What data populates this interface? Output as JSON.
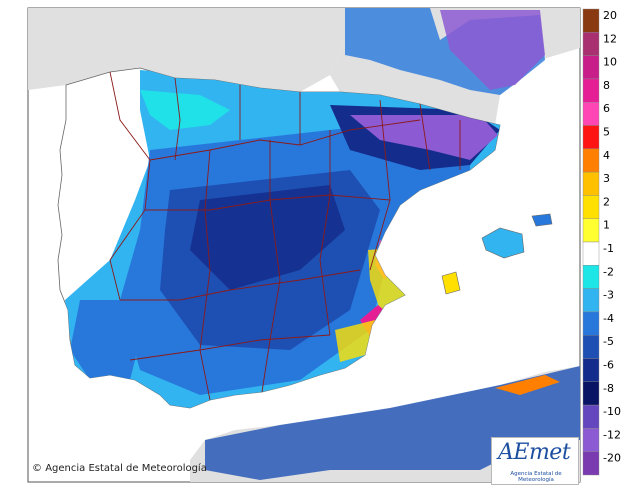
{
  "map": {
    "copyright": "Agencia Estatal de Meteorología",
    "logo_text": "AEmet",
    "logo_subtitle": "Agencia Estatal de Meteorología",
    "legend": [
      {
        "label": "20",
        "color": "#8a3a10"
      },
      {
        "label": "12",
        "color": "#a83070"
      },
      {
        "label": "10",
        "color": "#c81e8a"
      },
      {
        "label": "8",
        "color": "#e61e96"
      },
      {
        "label": "6",
        "color": "#ff46b4"
      },
      {
        "label": "5",
        "color": "#ff1414"
      },
      {
        "label": "4",
        "color": "#ff8000"
      },
      {
        "label": "3",
        "color": "#ffc000"
      },
      {
        "label": "2",
        "color": "#ffe000"
      },
      {
        "label": "1",
        "color": "#ffff32"
      },
      {
        "label": "-1",
        "color": "#ffffff"
      },
      {
        "label": "-2",
        "color": "#1ee6e6"
      },
      {
        "label": "-3",
        "color": "#32b4f0"
      },
      {
        "label": "-4",
        "color": "#2878dc"
      },
      {
        "label": "-5",
        "color": "#1e50b4"
      },
      {
        "label": "-6",
        "color": "#142d8c"
      },
      {
        "label": "-8",
        "color": "#0a1464"
      },
      {
        "label": "-10",
        "color": "#6446be"
      },
      {
        "label": "-12",
        "color": "#8c5ad2"
      },
      {
        "label": "-20",
        "color": "#7a3ab0"
      }
    ],
    "land_color": "#e0e0e0"
  }
}
